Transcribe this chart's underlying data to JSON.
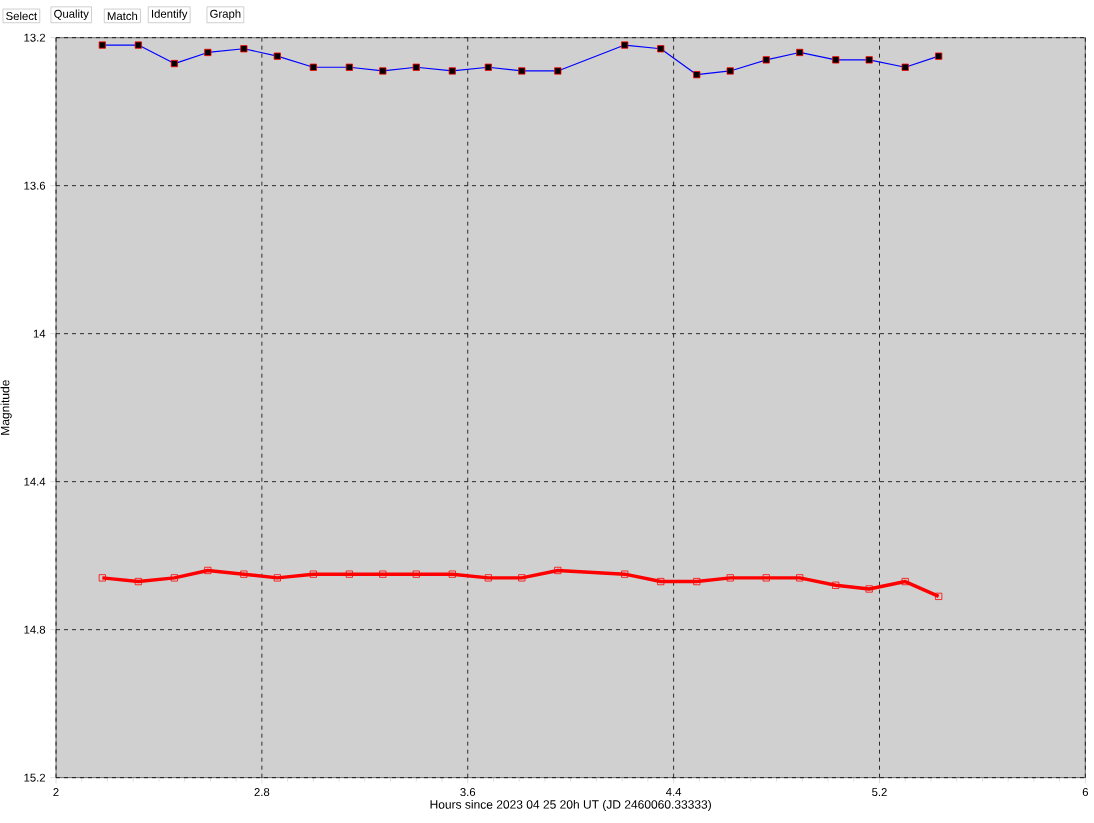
{
  "chart_data": {
    "type": "line",
    "xlabel": "Hours since 2023 04 25 20h UT (JD 2460060.33333)",
    "ylabel": "Magnitude",
    "annotations": [
      "Select",
      "Quality",
      "Match",
      "Identify",
      "Graph"
    ],
    "x": [
      2.18,
      2.32,
      2.46,
      2.59,
      2.73,
      2.86,
      3.0,
      3.14,
      3.27,
      3.4,
      3.54,
      3.68,
      3.81,
      3.95,
      4.21,
      4.35,
      4.49,
      4.62,
      4.76,
      4.89,
      5.03,
      5.16,
      5.3,
      5.43
    ],
    "series": [
      {
        "color": "#0000ff",
        "values": [
          13.22,
          13.22,
          13.27,
          13.24,
          13.23,
          13.25,
          13.28,
          13.28,
          13.29,
          13.28,
          13.29,
          13.28,
          13.29,
          13.29,
          13.22,
          13.23,
          13.3,
          13.29,
          13.26,
          13.24,
          13.26,
          13.26,
          13.28,
          13.25
        ]
      },
      {
        "color": "#ff0000",
        "values": [
          14.66,
          14.67,
          14.66,
          14.64,
          14.65,
          14.66,
          14.65,
          14.65,
          14.65,
          14.65,
          14.65,
          14.66,
          14.66,
          14.64,
          14.65,
          14.67,
          14.67,
          14.66,
          14.66,
          14.66,
          14.68,
          14.69,
          14.67,
          14.71
        ]
      }
    ],
    "xlim": [
      2,
      6
    ],
    "xticks": [
      2,
      2.8,
      3.6,
      4.4,
      5.2,
      6
    ],
    "ylim": [
      15.2,
      13.2
    ],
    "yticks": [
      13.2,
      13.6,
      14,
      14.4,
      14.8,
      15.2
    ],
    "grid": true,
    "marker": "square",
    "line_style": "solid"
  }
}
